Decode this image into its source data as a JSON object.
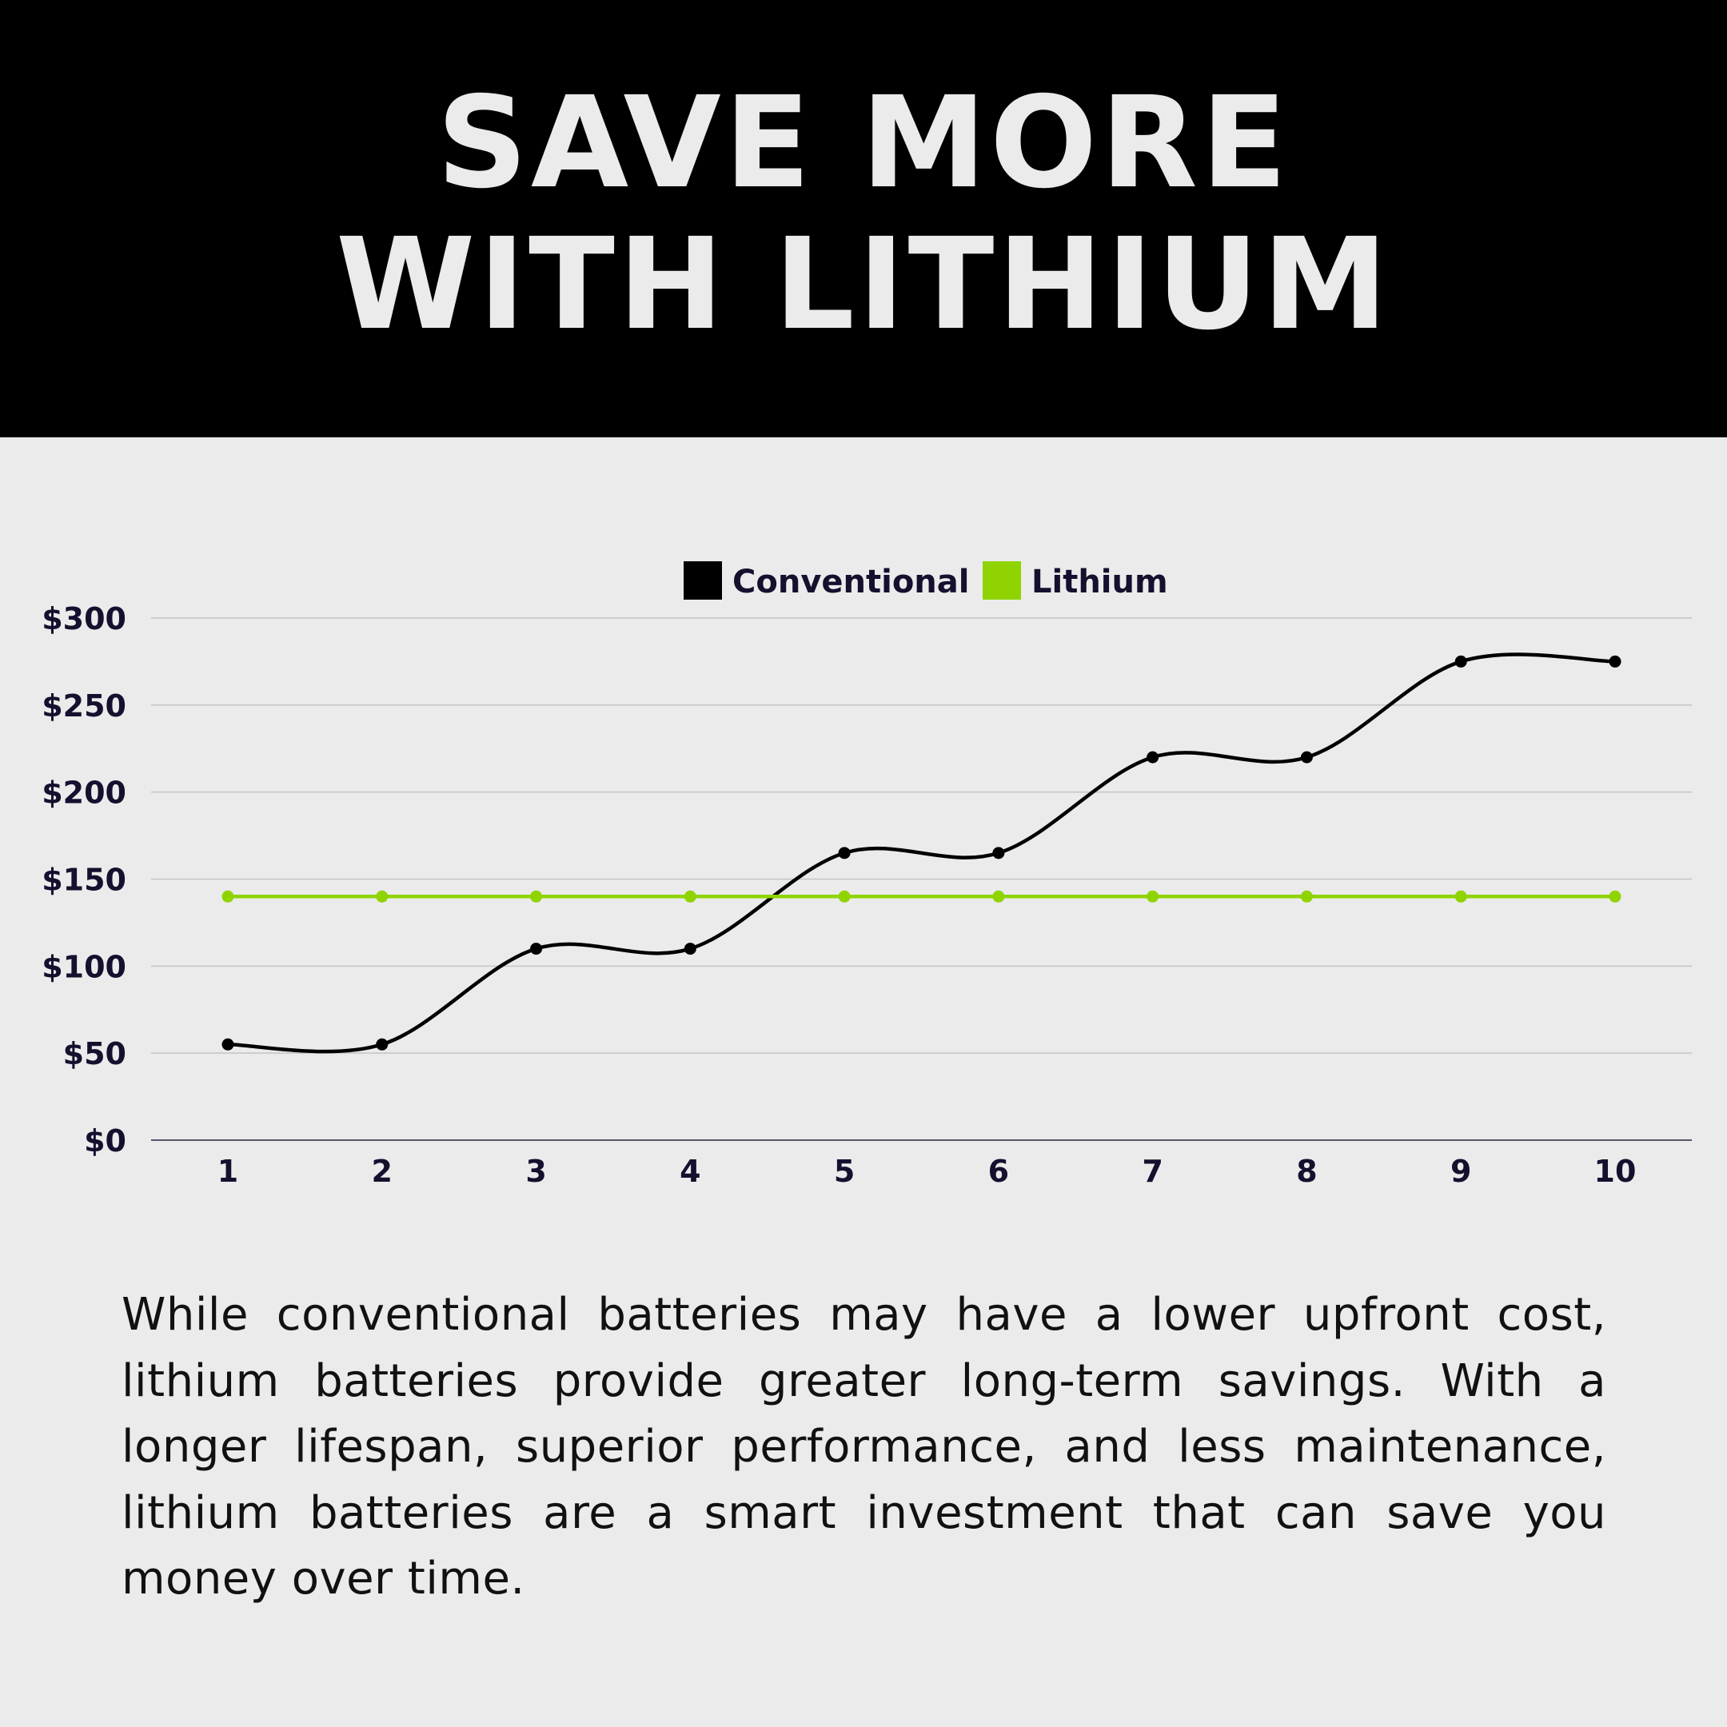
{
  "header": {
    "title_line1": "SAVE MORE",
    "title_line2": "WITH LITHIUM"
  },
  "chart_data": {
    "type": "line",
    "categories": [
      "1",
      "2",
      "3",
      "4",
      "5",
      "6",
      "7",
      "8",
      "9",
      "10"
    ],
    "series": [
      {
        "name": "Conventional",
        "color": "#000000",
        "values": [
          55,
          55,
          110,
          110,
          165,
          165,
          220,
          220,
          275,
          275
        ]
      },
      {
        "name": "Lithium",
        "color": "#8fd400",
        "values": [
          140,
          140,
          140,
          140,
          140,
          140,
          140,
          140,
          140,
          140
        ]
      }
    ],
    "yticks": [
      "$0",
      "$50",
      "$100",
      "$150",
      "$200",
      "$250",
      "$300"
    ],
    "ylim": [
      0,
      300
    ],
    "grid": true,
    "legend": "top-center",
    "smooth": true
  },
  "body_text": "While conventional batteries may have a lower upfront cost, lithium batteries provide greater long-term savings. With a longer lifespan, superior performance, and less maintenance, lithium batteries are a smart investment that can save you money over time."
}
